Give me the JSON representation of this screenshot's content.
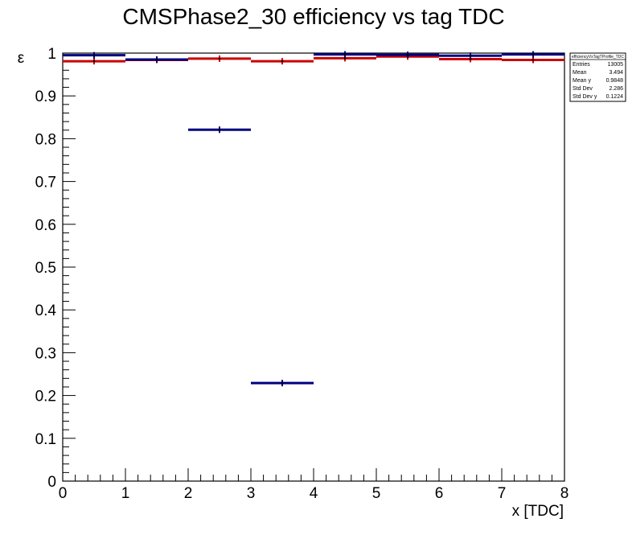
{
  "chart_data": {
    "type": "line",
    "title": "CMSPhase2_30 efficiency vs tag TDC",
    "xlabel": "x [TDC]",
    "ylabel": "ε",
    "xlim": [
      0,
      8
    ],
    "ylim": [
      0,
      1
    ],
    "x_ticks": [
      "0",
      "1",
      "2",
      "3",
      "4",
      "5",
      "6",
      "7",
      "8"
    ],
    "y_ticks": [
      "0",
      "0.1",
      "0.2",
      "0.3",
      "0.4",
      "0.5",
      "0.6",
      "0.7",
      "0.8",
      "0.9",
      "1"
    ],
    "grid": false,
    "series": [
      {
        "color": "#000080",
        "bins": [
          {
            "x0": 0,
            "x1": 1,
            "y": 0.995
          },
          {
            "x0": 1,
            "x1": 2,
            "y": 0.985
          },
          {
            "x0": 2,
            "x1": 3,
            "y": 0.821
          },
          {
            "x0": 3,
            "x1": 4,
            "y": 0.229
          },
          {
            "x0": 4,
            "x1": 5,
            "y": 0.997
          },
          {
            "x0": 5,
            "x1": 6,
            "y": 0.996
          },
          {
            "x0": 6,
            "x1": 7,
            "y": 0.994
          },
          {
            "x0": 7,
            "x1": 8,
            "y": 0.997
          }
        ]
      },
      {
        "color": "#cc0000",
        "bins": [
          {
            "x0": 0,
            "x1": 1,
            "y": 0.981
          },
          {
            "x0": 1,
            "x1": 2,
            "y": 0.984
          },
          {
            "x0": 2,
            "x1": 3,
            "y": 0.987
          },
          {
            "x0": 3,
            "x1": 4,
            "y": 0.981
          },
          {
            "x0": 4,
            "x1": 5,
            "y": 0.988
          },
          {
            "x0": 5,
            "x1": 6,
            "y": 0.992
          },
          {
            "x0": 6,
            "x1": 7,
            "y": 0.986
          },
          {
            "x0": 7,
            "x1": 8,
            "y": 0.984
          }
        ]
      }
    ],
    "stats_box": {
      "name": "efficiencyVsTagTProfile_TDC",
      "rows": [
        {
          "label": "Entries",
          "value": "13005"
        },
        {
          "label": "Mean",
          "value": "3.494"
        },
        {
          "label": "Mean y",
          "value": "0.9848"
        },
        {
          "label": "Std Dev",
          "value": "2.286"
        },
        {
          "label": "Std Dev y",
          "value": "0.1224"
        }
      ]
    }
  }
}
